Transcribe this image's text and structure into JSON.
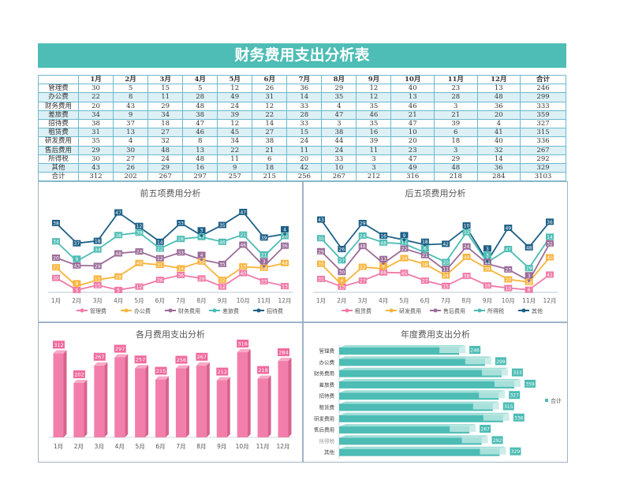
{
  "title": "财务费用支出分析表",
  "table": {
    "headers": [
      "",
      "1月",
      "2月",
      "3月",
      "4月",
      "5月",
      "6月",
      "7月",
      "8月",
      "9月",
      "10月",
      "11月",
      "12月",
      "合计"
    ],
    "rows": [
      [
        "管理费",
        30,
        5,
        15,
        5,
        12,
        26,
        36,
        29,
        12,
        40,
        23,
        13,
        246
      ],
      [
        "办公费",
        22,
        8,
        11,
        28,
        49,
        31,
        14,
        35,
        12,
        13,
        28,
        48,
        299
      ],
      [
        "财务费用",
        20,
        43,
        29,
        48,
        24,
        12,
        33,
        4,
        35,
        46,
        3,
        36,
        333
      ],
      [
        "差旅费",
        34,
        9,
        34,
        38,
        39,
        22,
        28,
        47,
        46,
        21,
        21,
        20,
        359
      ],
      [
        "招待费",
        38,
        37,
        18,
        47,
        12,
        14,
        33,
        3,
        35,
        47,
        39,
        4,
        327
      ],
      [
        "租赁费",
        31,
        13,
        27,
        46,
        45,
        27,
        15,
        38,
        16,
        10,
        6,
        41,
        315
      ],
      [
        "研发费用",
        35,
        4,
        32,
        8,
        34,
        38,
        24,
        44,
        39,
        20,
        18,
        40,
        336
      ],
      [
        "售后费用",
        29,
        30,
        48,
        13,
        22,
        21,
        11,
        24,
        11,
        23,
        3,
        32,
        267
      ],
      [
        "所得税",
        30,
        27,
        24,
        48,
        11,
        6,
        20,
        33,
        3,
        47,
        29,
        14,
        292
      ],
      [
        "其他",
        43,
        26,
        29,
        16,
        9,
        18,
        42,
        10,
        3,
        49,
        48,
        36,
        329
      ],
      [
        "合计",
        312,
        202,
        267,
        297,
        257,
        215,
        256,
        267,
        212,
        316,
        218,
        284,
        3103
      ]
    ]
  },
  "chart_data": [
    {
      "type": "line",
      "stacked": true,
      "title": "前五项费用分析",
      "categories": [
        "1月",
        "2月",
        "3月",
        "4月",
        "5月",
        "6月",
        "7月",
        "8月",
        "9月",
        "10月",
        "11月",
        "12月"
      ],
      "ylim": [
        0,
        180
      ],
      "legend": "bottom",
      "series": [
        {
          "name": "管理费",
          "color": "#f07aa8",
          "values": [
            30,
            5,
            15,
            5,
            12,
            26,
            36,
            29,
            12,
            40,
            23,
            13
          ]
        },
        {
          "name": "办公费",
          "color": "#f8b43c",
          "values": [
            22,
            8,
            11,
            28,
            49,
            31,
            14,
            35,
            12,
            13,
            28,
            48
          ]
        },
        {
          "name": "财务费用",
          "color": "#9a6c98",
          "values": [
            20,
            43,
            29,
            48,
            24,
            12,
            33,
            4,
            35,
            46,
            3,
            36
          ]
        },
        {
          "name": "差旅费",
          "color": "#4cbcb4",
          "values": [
            34,
            9,
            34,
            38,
            39,
            22,
            28,
            47,
            46,
            21,
            21,
            20
          ]
        },
        {
          "name": "招待费",
          "color": "#1c5f86",
          "values": [
            38,
            37,
            18,
            47,
            12,
            14,
            33,
            3,
            35,
            47,
            39,
            4
          ]
        }
      ]
    },
    {
      "type": "line",
      "stacked": true,
      "title": "后五项费用分析",
      "categories": [
        "1月",
        "2月",
        "3月",
        "4月",
        "5月",
        "6月",
        "7月",
        "8月",
        "9月",
        "10月",
        "11月",
        "12月"
      ],
      "ylim": [
        0,
        200
      ],
      "legend": "bottom",
      "series": [
        {
          "name": "租赁费",
          "color": "#f07aa8",
          "values": [
            31,
            13,
            27,
            46,
            45,
            27,
            15,
            38,
            16,
            10,
            6,
            41
          ]
        },
        {
          "name": "研发费用",
          "color": "#f8b43c",
          "values": [
            35,
            4,
            32,
            8,
            34,
            38,
            24,
            44,
            39,
            20,
            18,
            40
          ]
        },
        {
          "name": "售后费用",
          "color": "#9a6c98",
          "values": [
            29,
            30,
            48,
            13,
            22,
            21,
            11,
            24,
            11,
            23,
            3,
            32
          ]
        },
        {
          "name": "所得税",
          "color": "#4cbcb4",
          "values": [
            30,
            27,
            24,
            48,
            11,
            6,
            20,
            33,
            3,
            47,
            29,
            14
          ]
        },
        {
          "name": "其他",
          "color": "#1c5f86",
          "values": [
            43,
            26,
            29,
            16,
            9,
            18,
            42,
            10,
            3,
            49,
            48,
            36
          ]
        }
      ]
    },
    {
      "type": "bar",
      "title": "各月费用支出分析",
      "categories": [
        "1月",
        "2月",
        "3月",
        "4月",
        "5月",
        "6月",
        "7月",
        "8月",
        "9月",
        "10月",
        "11月",
        "12月"
      ],
      "values": [
        312,
        202,
        267,
        297,
        257,
        215,
        256,
        267,
        212,
        316,
        218,
        284
      ],
      "color": "#f27fab",
      "ylim": [
        0,
        340
      ]
    },
    {
      "type": "bar",
      "orientation": "horizontal",
      "title": "年度费用支出分析",
      "categories": [
        "管理费",
        "办公费",
        "财务费用",
        "差旅费",
        "招待费",
        "租赁费",
        "研发费用",
        "售后费用",
        "所得税",
        "其他"
      ],
      "values": [
        246,
        299,
        333,
        359,
        327,
        315,
        336,
        267,
        292,
        329
      ],
      "series_name": "合计",
      "color": "#4cbcb4",
      "legend": "right"
    }
  ]
}
